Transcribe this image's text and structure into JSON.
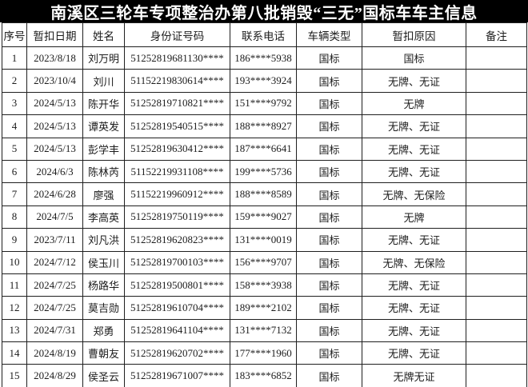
{
  "title": "南溪区三轮车专项整治办第八批销毁“三无”国标车车主信息",
  "table": {
    "columns": [
      {
        "key": "index",
        "label": "序号"
      },
      {
        "key": "date",
        "label": "暂扣日期"
      },
      {
        "key": "name",
        "label": "姓名"
      },
      {
        "key": "id_number",
        "label": "身份证号码"
      },
      {
        "key": "phone",
        "label": "联系电话"
      },
      {
        "key": "vehicle_type",
        "label": "车辆类型"
      },
      {
        "key": "reason",
        "label": "暂扣原因"
      },
      {
        "key": "remarks",
        "label": "备注"
      }
    ],
    "rows": [
      {
        "index": "1",
        "date": "2023/8/18",
        "name": "刘万明",
        "id_number": "51252819681130****",
        "phone": "186****5938",
        "vehicle_type": "国标",
        "reason": "国标",
        "remarks": ""
      },
      {
        "index": "2",
        "date": "2023/10/4",
        "name": "刘川",
        "id_number": "51152219830614****",
        "phone": "193****3924",
        "vehicle_type": "国标",
        "reason": "无牌、无证",
        "remarks": ""
      },
      {
        "index": "3",
        "date": "2024/5/13",
        "name": "陈开华",
        "id_number": "51252819710821****",
        "phone": "151****9792",
        "vehicle_type": "国标",
        "reason": "无牌",
        "remarks": ""
      },
      {
        "index": "4",
        "date": "2024/5/13",
        "name": "谭英发",
        "id_number": "51252819540515****",
        "phone": "188****8927",
        "vehicle_type": "国标",
        "reason": "无牌、无证",
        "remarks": ""
      },
      {
        "index": "5",
        "date": "2024/5/13",
        "name": "彭学丰",
        "id_number": "51252819630412****",
        "phone": "187****6641",
        "vehicle_type": "国标",
        "reason": "无牌、无证",
        "remarks": ""
      },
      {
        "index": "6",
        "date": "2024/6/3",
        "name": "陈林芮",
        "id_number": "51152219931108****",
        "phone": "199****5736",
        "vehicle_type": "国标",
        "reason": "无牌、无证",
        "remarks": ""
      },
      {
        "index": "7",
        "date": "2024/6/28",
        "name": "廖强",
        "id_number": "51152219960912****",
        "phone": "188****8589",
        "vehicle_type": "国标",
        "reason": "无牌、无保险",
        "remarks": ""
      },
      {
        "index": "8",
        "date": "2024/7/5",
        "name": "李高英",
        "id_number": "51252819750119****",
        "phone": "159****9027",
        "vehicle_type": "国标",
        "reason": "无牌",
        "remarks": ""
      },
      {
        "index": "9",
        "date": "2023/7/11",
        "name": "刘凡洪",
        "id_number": "51252819620823****",
        "phone": "131****0019",
        "vehicle_type": "国标",
        "reason": "无牌、无证",
        "remarks": ""
      },
      {
        "index": "10",
        "date": "2024/7/12",
        "name": "侯玉川",
        "id_number": "51252819700103****",
        "phone": "156****9707",
        "vehicle_type": "国标",
        "reason": "无牌、无保险",
        "remarks": ""
      },
      {
        "index": "11",
        "date": "2024/7/25",
        "name": "杨路华",
        "id_number": "51252819500801****",
        "phone": "158****3938",
        "vehicle_type": "国标",
        "reason": "无牌、无证",
        "remarks": ""
      },
      {
        "index": "12",
        "date": "2024/7/25",
        "name": "莫吉勋",
        "id_number": "51252819610704****",
        "phone": "189****2102",
        "vehicle_type": "国标",
        "reason": "无牌、无证",
        "remarks": ""
      },
      {
        "index": "13",
        "date": "2024/7/31",
        "name": "郑勇",
        "id_number": "51252819641104****",
        "phone": "131****7132",
        "vehicle_type": "国标",
        "reason": "无牌、无证",
        "remarks": ""
      },
      {
        "index": "14",
        "date": "2024/8/19",
        "name": "曹朝友",
        "id_number": "51252819620702****",
        "phone": "177****1960",
        "vehicle_type": "国标",
        "reason": "无牌、无证",
        "remarks": ""
      },
      {
        "index": "15",
        "date": "2024/8/29",
        "name": "侯圣云",
        "id_number": "51252819671007****",
        "phone": "183****6852",
        "vehicle_type": "国标",
        "reason": "无牌无证",
        "remarks": ""
      }
    ]
  }
}
